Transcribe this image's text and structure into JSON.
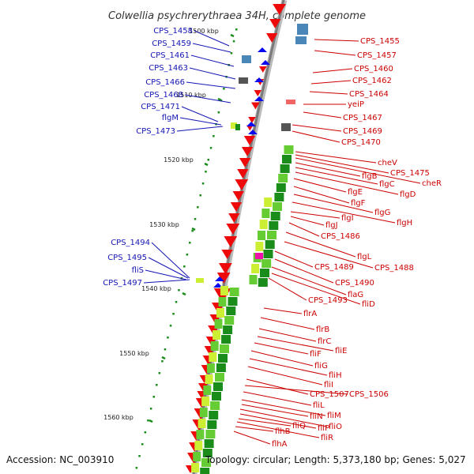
{
  "title": "Colwellia psychrerythraea 34H, complete genome",
  "footer": {
    "accession": "Accession: NC_003910",
    "summary": "Topology: circular; Length: 5,373,180 bp; Genes: 5,027"
  },
  "kbp_labels": [
    "1500 kbp",
    "1510 kbp",
    "1520 kbp",
    "1530 kbp",
    "1540 kbp",
    "1550 kbp",
    "1560 kbp"
  ],
  "colors": {
    "left_labels": "#1414b4",
    "right_labels": "#cc0000",
    "forward_strand": "#0a0aee",
    "reverse_strand": "#ee0a0a",
    "backbone": "#888888",
    "green_dark": "#1a8c1a",
    "green_light": "#66cc33",
    "lime": "#ccee33",
    "magenta": "#ee11aa",
    "steel_blue": "#4a86b8",
    "grey_block": "#555555",
    "pink": "#ee6666"
  },
  "left_genes": [
    "CPS_1458",
    "CPS_1459",
    "CPS_1461",
    "CPS_1463",
    "CPS_1466",
    "CPS_1468",
    "CPS_1471",
    "flgM",
    "CPS_1473",
    "CPS_1494",
    "CPS_1495",
    "fliS",
    "CPS_1497"
  ],
  "right_genes": [
    "CPS_1455",
    "CPS_1457",
    "CPS_1460",
    "CPS_1462",
    "CPS_1464",
    "yeiP",
    "CPS_1467",
    "CPS_1469",
    "CPS_1470",
    "cheV",
    "CPS_1475",
    "cheR",
    "flgB",
    "flgC",
    "flgD",
    "flgE",
    "flgF",
    "flgG",
    "flgH",
    "flgI",
    "flgJ",
    "CPS_1486",
    "flgL",
    "CPS_1488",
    "CPS_1489",
    "CPS_1490",
    "flaG",
    "fliD",
    "CPS_1493",
    "flrA",
    "flrB",
    "flrC",
    "fliE",
    "fliF",
    "fliG",
    "fliH",
    "fliI",
    "CPS_1507",
    "CPS_1506",
    "fliL",
    "fliM",
    "fliN",
    "fliO",
    "fliP",
    "fliQ",
    "fliR",
    "flhB",
    "flhA"
  ]
}
